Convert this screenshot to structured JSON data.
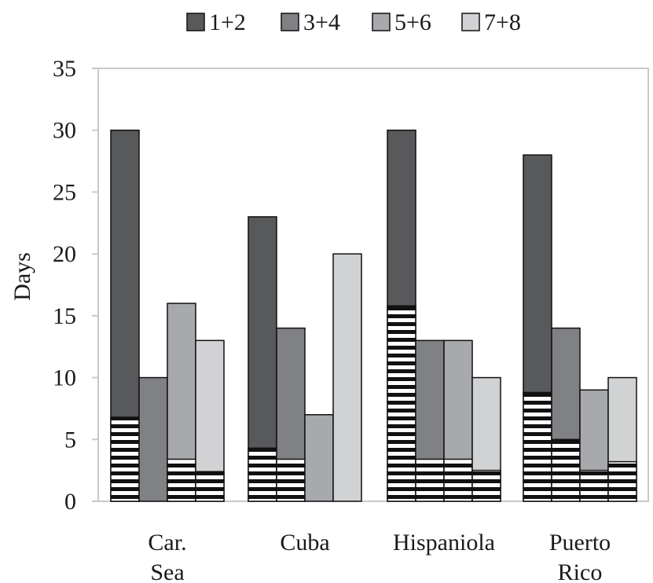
{
  "chart_data": {
    "type": "bar",
    "stacked_hatched_base": true,
    "title": "",
    "xlabel": "",
    "ylabel": "Days",
    "ylim": [
      0,
      35
    ],
    "yticks": [
      0,
      5,
      10,
      15,
      20,
      25,
      30,
      35
    ],
    "categories": [
      {
        "line1": "Car.",
        "line2": "Sea"
      },
      {
        "line1": "Cuba",
        "line2": ""
      },
      {
        "line1": "Hispaniola",
        "line2": ""
      },
      {
        "line1": "Puerto",
        "line2": "Rico"
      }
    ],
    "legend_position": "top",
    "grid": false,
    "series": [
      {
        "name": "1+2",
        "color": "#58595b",
        "values": [
          30,
          23,
          30,
          28
        ],
        "hatched": [
          6.8,
          4.3,
          15.8,
          8.8
        ]
      },
      {
        "name": "3+4",
        "color": "#808184",
        "values": [
          10,
          14,
          13,
          14
        ],
        "hatched": [
          0,
          3.4,
          3.4,
          5.0
        ]
      },
      {
        "name": "5+6",
        "color": "#a7a9ac",
        "values": [
          16,
          7,
          13,
          9
        ],
        "hatched": [
          3.4,
          0,
          3.4,
          2.5
        ]
      },
      {
        "name": "7+8",
        "color": "#d1d2d4",
        "values": [
          13,
          20,
          10,
          10
        ],
        "hatched": [
          2.4,
          0,
          2.5,
          3.2
        ]
      }
    ]
  }
}
